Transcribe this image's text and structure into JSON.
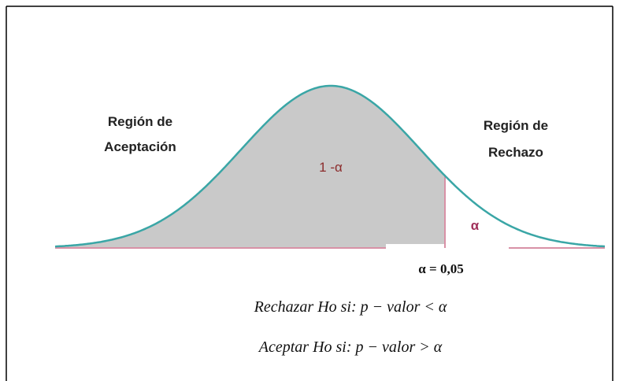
{
  "labels": {
    "acceptance": [
      "Región de",
      "Aceptación"
    ],
    "rejection": [
      "Región de",
      "Rechazo"
    ],
    "confidence": "1 -α",
    "alpha": "α",
    "alpha_value": "α = 0,05"
  },
  "rules": [
    "Rechazar Ho si: p − valor < α",
    "Aceptar Ho si: p − valor > α"
  ]
}
